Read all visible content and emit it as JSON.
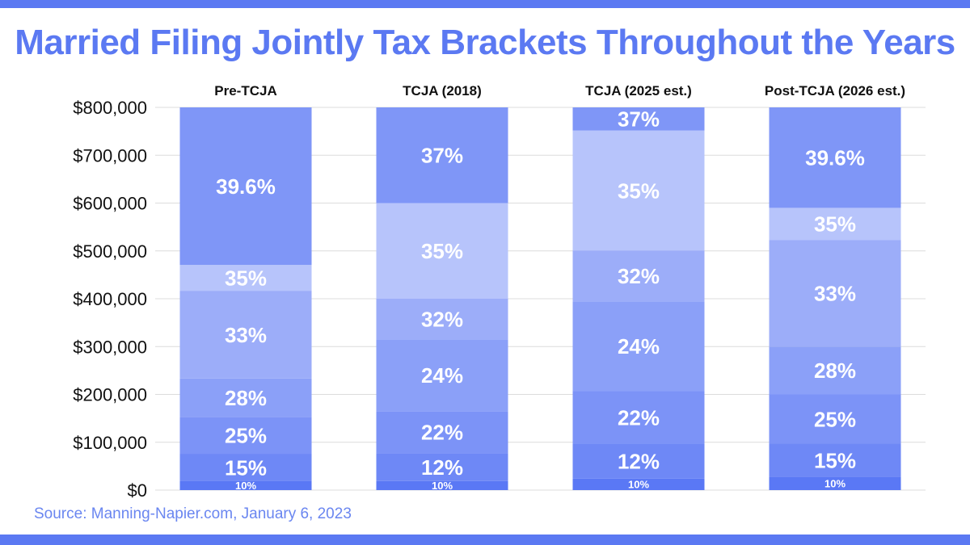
{
  "title": "Married Filing Jointly Tax Brackets Throughout the Years",
  "source": "Source: Manning-Napier.com, January 6, 2023",
  "chart_data": {
    "type": "bar",
    "stacked": true,
    "title": "Married Filing Jointly Tax Brackets Throughout the Years",
    "xlabel": "",
    "ylabel": "",
    "ylim": [
      0,
      800000
    ],
    "yticks": [
      0,
      100000,
      200000,
      300000,
      400000,
      500000,
      600000,
      700000,
      800000
    ],
    "ytick_labels": [
      "$0",
      "$100,000",
      "$200,000",
      "$300,000",
      "$400,000",
      "$500,000",
      "$600,000",
      "$700,000",
      "$800,000"
    ],
    "grid": true,
    "categories": [
      "Pre-TCJA",
      "TCJA (2018)",
      "TCJA (2025 est.)",
      "Post-TCJA (2026 est.)"
    ],
    "columns": [
      {
        "name": "Pre-TCJA",
        "brackets": [
          {
            "rate": "10%",
            "from": 0,
            "to": 18650
          },
          {
            "rate": "15%",
            "from": 18650,
            "to": 75900
          },
          {
            "rate": "25%",
            "from": 75900,
            "to": 153100
          },
          {
            "rate": "28%",
            "from": 153100,
            "to": 233350
          },
          {
            "rate": "33%",
            "from": 233350,
            "to": 416700
          },
          {
            "rate": "35%",
            "from": 416700,
            "to": 470700
          },
          {
            "rate": "39.6%",
            "from": 470700,
            "to": 800000
          }
        ]
      },
      {
        "name": "TCJA (2018)",
        "brackets": [
          {
            "rate": "10%",
            "from": 0,
            "to": 19050
          },
          {
            "rate": "12%",
            "from": 19050,
            "to": 77400
          },
          {
            "rate": "22%",
            "from": 77400,
            "to": 165000
          },
          {
            "rate": "24%",
            "from": 165000,
            "to": 315000
          },
          {
            "rate": "32%",
            "from": 315000,
            "to": 400000
          },
          {
            "rate": "35%",
            "from": 400000,
            "to": 600000
          },
          {
            "rate": "37%",
            "from": 600000,
            "to": 800000
          }
        ]
      },
      {
        "name": "TCJA (2025 est.)",
        "brackets": [
          {
            "rate": "10%",
            "from": 0,
            "to": 23850
          },
          {
            "rate": "12%",
            "from": 23850,
            "to": 96950
          },
          {
            "rate": "22%",
            "from": 96950,
            "to": 206700
          },
          {
            "rate": "24%",
            "from": 206700,
            "to": 394600
          },
          {
            "rate": "32%",
            "from": 394600,
            "to": 501050
          },
          {
            "rate": "35%",
            "from": 501050,
            "to": 751600
          },
          {
            "rate": "37%",
            "from": 751600,
            "to": 800000
          }
        ]
      },
      {
        "name": "Post-TCJA (2026 est.)",
        "brackets": [
          {
            "rate": "10%",
            "from": 0,
            "to": 27700
          },
          {
            "rate": "15%",
            "from": 27700,
            "to": 97000
          },
          {
            "rate": "25%",
            "from": 97000,
            "to": 200000
          },
          {
            "rate": "28%",
            "from": 200000,
            "to": 300000
          },
          {
            "rate": "33%",
            "from": 300000,
            "to": 523000
          },
          {
            "rate": "35%",
            "from": 523000,
            "to": 590000
          },
          {
            "rate": "39.6%",
            "from": 590000,
            "to": 800000
          }
        ]
      }
    ]
  },
  "colors": {
    "10%": "#5a78f5",
    "12%": "#6e88f6",
    "15%": "#6e88f6",
    "22%": "#7c93f7",
    "25%": "#7c93f7",
    "24%": "#8ba0f8",
    "28%": "#8ba0f8",
    "32%": "#9cadf9",
    "33%": "#9cadf9",
    "35%": "#b7c4fb",
    "37%": "#7f96f7",
    "39.6%": "#7f96f7",
    "band": "#5b79f2",
    "title": "#5b79f2",
    "grid": "#dcdcdc"
  }
}
